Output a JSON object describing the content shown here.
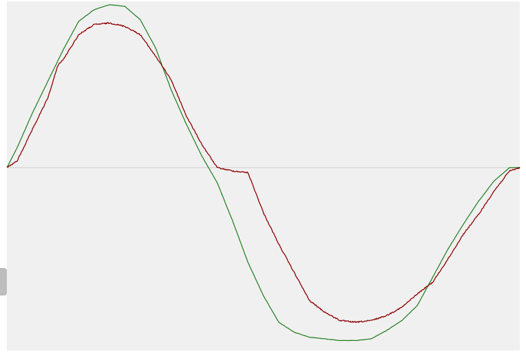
{
  "colors": {
    "background": "#f0f0f0",
    "baseline": "#cccccc",
    "series_green": "#1a7a1a",
    "series_red": "#8b0000",
    "scroll_tab": "#bdbdbd"
  },
  "chart_data": {
    "type": "line",
    "title": "",
    "xlabel": "",
    "ylabel": "",
    "grid": false,
    "legend": "none",
    "xlim": [
      0,
      1
    ],
    "ylim": [
      -1.1,
      1.0
    ],
    "baseline_y": 0,
    "series": [
      {
        "color": "#1a7a1a",
        "noise": 0.25,
        "x": [
          0.0,
          0.02,
          0.05,
          0.08,
          0.11,
          0.14,
          0.17,
          0.2,
          0.23,
          0.26,
          0.29,
          0.32,
          0.35,
          0.38,
          0.41,
          0.44,
          0.47,
          0.5,
          0.53,
          0.56,
          0.59,
          0.62,
          0.65,
          0.68,
          0.71,
          0.74,
          0.77,
          0.8,
          0.83,
          0.86,
          0.89,
          0.92,
          0.95,
          0.98,
          1.0
        ],
        "y": [
          0.0,
          0.12,
          0.33,
          0.52,
          0.71,
          0.88,
          0.95,
          0.98,
          0.97,
          0.89,
          0.72,
          0.47,
          0.26,
          0.07,
          -0.09,
          -0.32,
          -0.57,
          -0.77,
          -0.93,
          -0.99,
          -1.02,
          -1.03,
          -1.04,
          -1.04,
          -1.03,
          -0.98,
          -0.92,
          -0.83,
          -0.66,
          -0.49,
          -0.34,
          -0.2,
          -0.08,
          0.0,
          0.0
        ]
      },
      {
        "color": "#8b0000",
        "noise": 0.9,
        "x": [
          0.0,
          0.02,
          0.05,
          0.08,
          0.1,
          0.11,
          0.14,
          0.17,
          0.2,
          0.23,
          0.26,
          0.29,
          0.32,
          0.35,
          0.38,
          0.41,
          0.44,
          0.47,
          0.5,
          0.53,
          0.56,
          0.59,
          0.62,
          0.65,
          0.68,
          0.71,
          0.74,
          0.77,
          0.8,
          0.83,
          0.86,
          0.89,
          0.92,
          0.95,
          0.98,
          1.0
        ],
        "y": [
          0.0,
          0.04,
          0.23,
          0.42,
          0.62,
          0.65,
          0.8,
          0.86,
          0.87,
          0.85,
          0.8,
          0.67,
          0.53,
          0.31,
          0.14,
          0.0,
          -0.02,
          -0.03,
          -0.27,
          -0.46,
          -0.63,
          -0.8,
          -0.87,
          -0.92,
          -0.93,
          -0.92,
          -0.89,
          -0.84,
          -0.76,
          -0.69,
          -0.55,
          -0.4,
          -0.28,
          -0.14,
          -0.02,
          0.0
        ]
      }
    ]
  }
}
